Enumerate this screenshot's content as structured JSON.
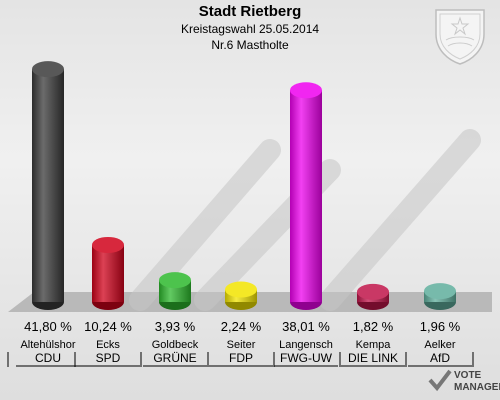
{
  "header": {
    "title": "Stadt Rietberg",
    "subtitle": "Kreistagswahl 25.05.2014",
    "subtitle2": "Nr.6 Mastholte"
  },
  "chart_data": {
    "type": "bar",
    "title": "Stadt Rietberg",
    "value_labels": [
      "41,80 %",
      "10,24 %",
      "3,93 %",
      "2,24 %",
      "38,01 %",
      "1,82 %",
      "1,96 %"
    ],
    "candidates": [
      "Altehülshor",
      "Ecks",
      "Goldbeck",
      "Seiter",
      "Langensch",
      "Kempa",
      "Aelker"
    ],
    "parties": [
      "CDU",
      "SPD",
      "GRÜNE",
      "FDP",
      "FWG-UW",
      "DIE LINK",
      "AfD"
    ],
    "values": [
      41.8,
      10.24,
      3.93,
      2.24,
      38.01,
      1.82,
      1.96
    ],
    "colors": [
      "#3a3a3a",
      "#d0021b",
      "#2db82d",
      "#f2e400",
      "#ee00ee",
      "#c0154a",
      "#5fae9c"
    ],
    "ylim": [
      0,
      42
    ]
  },
  "branding": {
    "logo_line1": "VOTE",
    "logo_line2": "MANAGER",
    "crest": "state-crest-icon"
  }
}
